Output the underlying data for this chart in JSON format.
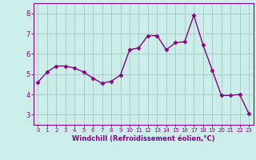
{
  "x": [
    0,
    1,
    2,
    3,
    4,
    5,
    6,
    7,
    8,
    9,
    10,
    11,
    12,
    13,
    14,
    15,
    16,
    17,
    18,
    19,
    20,
    21,
    22,
    23
  ],
  "y": [
    4.6,
    5.1,
    5.4,
    5.4,
    5.3,
    5.1,
    4.8,
    4.55,
    4.65,
    4.95,
    6.2,
    6.3,
    6.9,
    6.9,
    6.2,
    6.55,
    6.6,
    7.9,
    6.45,
    5.2,
    3.95,
    3.95,
    4.0,
    3.05
  ],
  "xlim": [
    -0.5,
    23.5
  ],
  "ylim": [
    2.5,
    8.5
  ],
  "yticks": [
    3,
    4,
    5,
    6,
    7,
    8
  ],
  "xticks": [
    0,
    1,
    2,
    3,
    4,
    5,
    6,
    7,
    8,
    9,
    10,
    11,
    12,
    13,
    14,
    15,
    16,
    17,
    18,
    19,
    20,
    21,
    22,
    23
  ],
  "xlabel": "Windchill (Refroidissement éolien,°C)",
  "line_color": "#880088",
  "marker": "D",
  "marker_size": 2.5,
  "bg_color": "#cceee8",
  "grid_color": "#aacccc",
  "tick_color": "#880088",
  "label_color": "#880088",
  "line_width": 1.0
}
